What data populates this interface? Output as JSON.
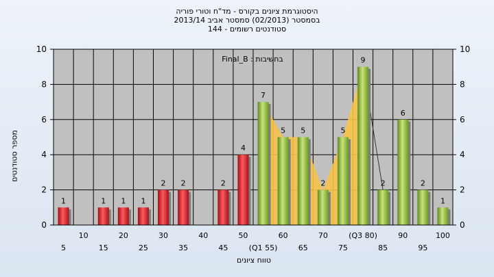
{
  "header": {
    "title_line1": "היסטוגרמת ציונים בקורס - מד\"ח וטורי פוריה",
    "title_line2": "בסמסטר  (02/2013)  סמסטר אביב 2013/14",
    "title_line3": "סטודנטים רשומים - 144"
  },
  "chart_data": {
    "type": "bar",
    "title": "היסטוגרמת ציונים בקורס - מד\"ח וטורי פוריה",
    "subtitle": "בסמסטר  (02/2013)  סמסטר אביב 2013/14 | סטודנטים רשומים - 144",
    "xlabel": "טווח ציונים",
    "ylabel": "מספר סטודנטים",
    "annotation": "בחשיבות : Final_B",
    "ylim": [
      0,
      10
    ],
    "yticks": [
      0,
      2,
      4,
      6,
      8,
      10
    ],
    "grid": true,
    "categories": [
      "5",
      "10",
      "15",
      "20",
      "25",
      "30",
      "35",
      "40",
      "45",
      "50",
      "(Q1 55)",
      "60",
      "65",
      "70",
      "75",
      "(Q3 80)",
      "85",
      "90",
      "95",
      "100"
    ],
    "series": [
      {
        "values": [
          1,
          0,
          1,
          1,
          1,
          2,
          2,
          0,
          2,
          4,
          7,
          5,
          5,
          2,
          5,
          9,
          2,
          6,
          2,
          1
        ],
        "labels": [
          "1",
          "",
          "1",
          "1",
          "1",
          "2",
          "2",
          "",
          "2",
          "4",
          "7",
          "5",
          "5",
          "2",
          "5",
          "9",
          "2",
          "6",
          "2",
          "1"
        ],
        "colors": [
          "#e8232a",
          "#e8232a",
          "#e8232a",
          "#e8232a",
          "#e8232a",
          "#e8232a",
          "#e8232a",
          "#e8232a",
          "#e8232a",
          "#e8232a",
          "#8fbf3a",
          "#8fbf3a",
          "#8fbf3a",
          "#8fbf3a",
          "#8fbf3a",
          "#8fbf3a",
          "#8fbf3a",
          "#8fbf3a",
          "#8fbf3a",
          "#8fbf3a"
        ]
      }
    ],
    "area_range": {
      "from": "(Q1 55)",
      "to": "(Q3 80)",
      "color": "#f6c24a"
    },
    "colors": {
      "background": "#c0c0c0",
      "grid": "#000000",
      "fail": "#e8232a",
      "pass": "#8fbf3a",
      "area": "#f6c24a"
    }
  }
}
